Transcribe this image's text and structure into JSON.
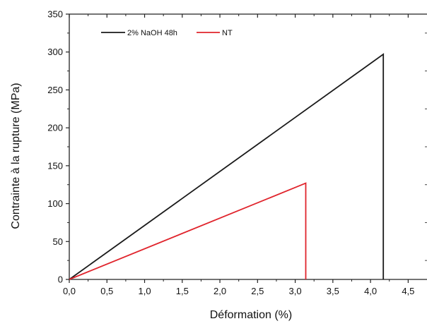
{
  "chart_data": {
    "type": "line",
    "title": "",
    "xlabel": "Déformation (%)",
    "ylabel": "Contrainte à la rupture (MPa)",
    "xlim": [
      0,
      4.75
    ],
    "ylim": [
      0,
      350
    ],
    "x_ticks": [
      0,
      0.5,
      1.0,
      1.5,
      2.0,
      2.5,
      3.0,
      3.5,
      4.0,
      4.5
    ],
    "x_tick_labels": [
      "0,0",
      "0,5",
      "1,0",
      "1,5",
      "2,0",
      "2,5",
      "3,0",
      "3,5",
      "4,0",
      "4,5"
    ],
    "y_ticks": [
      0,
      50,
      100,
      150,
      200,
      250,
      300,
      350
    ],
    "y_tick_labels": [
      "0",
      "50",
      "100",
      "150",
      "200",
      "250",
      "300",
      "350"
    ],
    "grid": false,
    "legend_position": "top-left",
    "series": [
      {
        "name": "2% NaOH 48h",
        "color": "#1a1a1a",
        "x": [
          0,
          4.17,
          4.17
        ],
        "y": [
          0,
          297,
          0
        ]
      },
      {
        "name": "NT",
        "color": "#e0242c",
        "x": [
          0,
          3.14,
          3.14
        ],
        "y": [
          0,
          127,
          0
        ]
      }
    ]
  }
}
